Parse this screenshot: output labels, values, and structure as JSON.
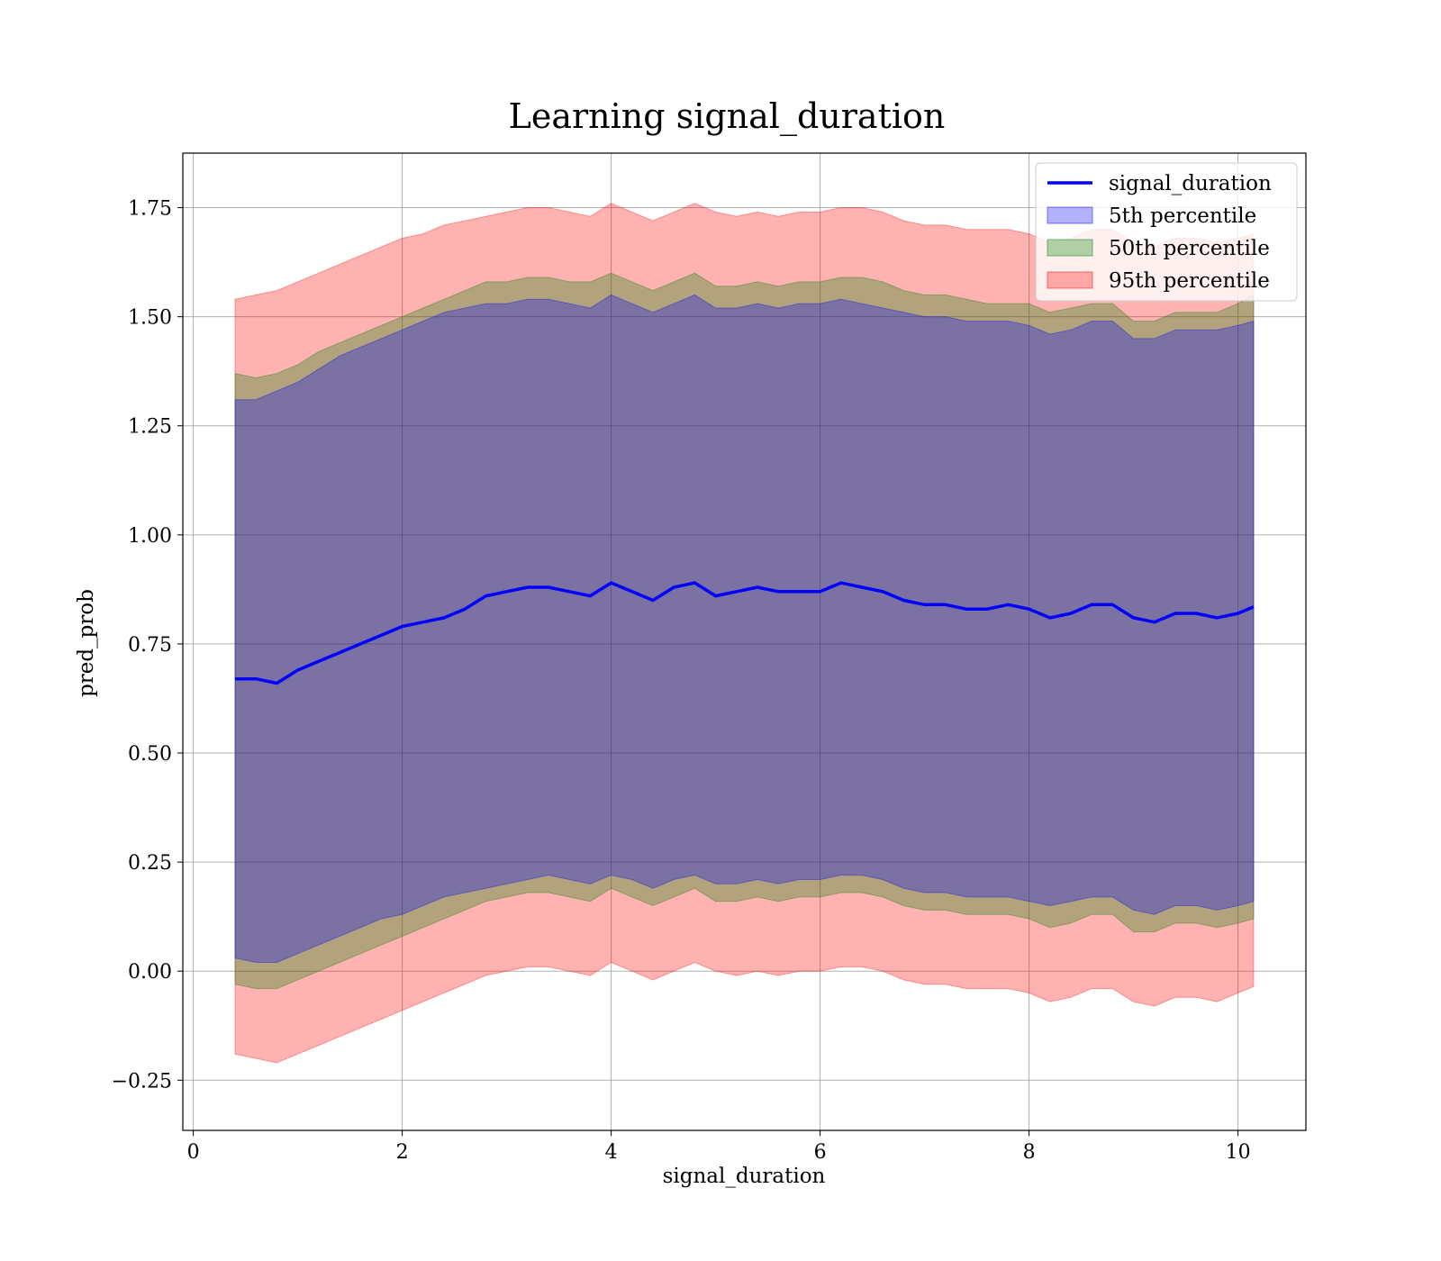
{
  "chart_data": {
    "type": "line",
    "title": "Learning signal_duration",
    "xlabel": "signal_duration",
    "ylabel": "pred_prob",
    "xlim": [
      -0.1,
      10.65
    ],
    "ylim": [
      -0.365,
      1.875
    ],
    "xticks": [
      0,
      2,
      4,
      6,
      8,
      10
    ],
    "xtick_labels": [
      "0",
      "2",
      "4",
      "6",
      "8",
      "10"
    ],
    "yticks": [
      -0.25,
      0,
      0.25,
      0.5,
      0.75,
      1.0,
      1.25,
      1.5,
      1.75
    ],
    "ytick_labels": [
      "−0.25",
      "0.00",
      "0.25",
      "0.50",
      "0.75",
      "1.00",
      "1.25",
      "1.50",
      "1.75"
    ],
    "grid": true,
    "legend_position": "top-right",
    "legend": [
      "signal_duration",
      "5th percentile",
      "50th percentile",
      "95th percentile"
    ],
    "x": [
      0.4,
      0.6,
      0.8,
      1.0,
      1.2,
      1.4,
      1.6,
      1.8,
      2.0,
      2.2,
      2.4,
      2.6,
      2.8,
      3.0,
      3.2,
      3.4,
      3.6,
      3.8,
      4.0,
      4.2,
      4.4,
      4.6,
      4.8,
      5.0,
      5.2,
      5.4,
      5.6,
      5.8,
      6.0,
      6.2,
      6.4,
      6.6,
      6.8,
      7.0,
      7.2,
      7.4,
      7.6,
      7.8,
      8.0,
      8.2,
      8.4,
      8.6,
      8.8,
      9.0,
      9.2,
      9.4,
      9.6,
      9.8,
      10.0,
      10.15
    ],
    "series": [
      {
        "name": "signal_duration",
        "color": "#0000ff",
        "values": [
          0.67,
          0.67,
          0.66,
          0.69,
          0.71,
          0.73,
          0.75,
          0.77,
          0.79,
          0.8,
          0.81,
          0.83,
          0.86,
          0.87,
          0.88,
          0.88,
          0.87,
          0.86,
          0.89,
          0.87,
          0.85,
          0.88,
          0.89,
          0.86,
          0.87,
          0.88,
          0.87,
          0.87,
          0.87,
          0.89,
          0.88,
          0.87,
          0.85,
          0.84,
          0.84,
          0.83,
          0.83,
          0.84,
          0.83,
          0.81,
          0.82,
          0.84,
          0.84,
          0.81,
          0.8,
          0.82,
          0.82,
          0.81,
          0.82,
          0.835
        ]
      }
    ],
    "bands": [
      {
        "name": "95th percentile",
        "color": "#ff0000",
        "opacity": 0.3,
        "upper": [
          1.54,
          1.55,
          1.56,
          1.58,
          1.6,
          1.62,
          1.64,
          1.66,
          1.68,
          1.69,
          1.71,
          1.72,
          1.73,
          1.74,
          1.75,
          1.75,
          1.74,
          1.73,
          1.76,
          1.74,
          1.72,
          1.74,
          1.76,
          1.74,
          1.73,
          1.74,
          1.73,
          1.74,
          1.74,
          1.75,
          1.75,
          1.74,
          1.72,
          1.71,
          1.71,
          1.7,
          1.7,
          1.7,
          1.69,
          1.67,
          1.68,
          1.7,
          1.7,
          1.67,
          1.66,
          1.68,
          1.68,
          1.67,
          1.68,
          1.69
        ],
        "lower": [
          -0.19,
          -0.2,
          -0.21,
          -0.19,
          -0.17,
          -0.15,
          -0.13,
          -0.11,
          -0.09,
          -0.07,
          -0.05,
          -0.03,
          -0.01,
          0.0,
          0.01,
          0.01,
          0.0,
          -0.01,
          0.02,
          0.0,
          -0.02,
          0.0,
          0.02,
          0.0,
          -0.01,
          0.0,
          -0.01,
          0.0,
          0.0,
          0.01,
          0.01,
          0.0,
          -0.02,
          -0.03,
          -0.03,
          -0.04,
          -0.04,
          -0.04,
          -0.05,
          -0.07,
          -0.06,
          -0.04,
          -0.04,
          -0.07,
          -0.08,
          -0.06,
          -0.06,
          -0.07,
          -0.05,
          -0.035
        ]
      },
      {
        "name": "50th percentile",
        "color": "#008000",
        "opacity": 0.3,
        "upper": [
          1.37,
          1.36,
          1.37,
          1.39,
          1.42,
          1.44,
          1.46,
          1.48,
          1.5,
          1.52,
          1.54,
          1.56,
          1.58,
          1.58,
          1.59,
          1.59,
          1.58,
          1.58,
          1.6,
          1.58,
          1.56,
          1.58,
          1.6,
          1.57,
          1.57,
          1.58,
          1.57,
          1.58,
          1.58,
          1.59,
          1.59,
          1.58,
          1.56,
          1.55,
          1.55,
          1.54,
          1.53,
          1.53,
          1.53,
          1.51,
          1.52,
          1.53,
          1.53,
          1.49,
          1.49,
          1.51,
          1.51,
          1.51,
          1.53,
          1.55
        ],
        "lower": [
          -0.03,
          -0.04,
          -0.04,
          -0.02,
          0.0,
          0.02,
          0.04,
          0.06,
          0.08,
          0.1,
          0.12,
          0.14,
          0.16,
          0.17,
          0.18,
          0.18,
          0.17,
          0.16,
          0.19,
          0.17,
          0.15,
          0.17,
          0.19,
          0.16,
          0.16,
          0.17,
          0.16,
          0.17,
          0.17,
          0.18,
          0.18,
          0.17,
          0.15,
          0.14,
          0.14,
          0.13,
          0.13,
          0.13,
          0.12,
          0.1,
          0.11,
          0.13,
          0.13,
          0.09,
          0.09,
          0.11,
          0.11,
          0.1,
          0.11,
          0.12
        ]
      },
      {
        "name": "5th percentile",
        "color": "#0000ff",
        "opacity": 0.3,
        "upper": [
          1.31,
          1.31,
          1.33,
          1.35,
          1.38,
          1.41,
          1.43,
          1.45,
          1.47,
          1.49,
          1.51,
          1.52,
          1.53,
          1.53,
          1.54,
          1.54,
          1.53,
          1.52,
          1.55,
          1.53,
          1.51,
          1.53,
          1.55,
          1.52,
          1.52,
          1.53,
          1.52,
          1.53,
          1.53,
          1.54,
          1.53,
          1.52,
          1.51,
          1.5,
          1.5,
          1.49,
          1.49,
          1.49,
          1.48,
          1.46,
          1.47,
          1.49,
          1.49,
          1.45,
          1.45,
          1.47,
          1.47,
          1.47,
          1.48,
          1.49
        ],
        "lower": [
          0.03,
          0.02,
          0.02,
          0.04,
          0.06,
          0.08,
          0.1,
          0.12,
          0.13,
          0.15,
          0.17,
          0.18,
          0.19,
          0.2,
          0.21,
          0.22,
          0.21,
          0.2,
          0.22,
          0.21,
          0.19,
          0.21,
          0.22,
          0.2,
          0.2,
          0.21,
          0.2,
          0.21,
          0.21,
          0.22,
          0.22,
          0.21,
          0.19,
          0.18,
          0.18,
          0.17,
          0.17,
          0.17,
          0.16,
          0.15,
          0.16,
          0.17,
          0.17,
          0.14,
          0.13,
          0.15,
          0.15,
          0.14,
          0.15,
          0.16
        ]
      }
    ]
  }
}
